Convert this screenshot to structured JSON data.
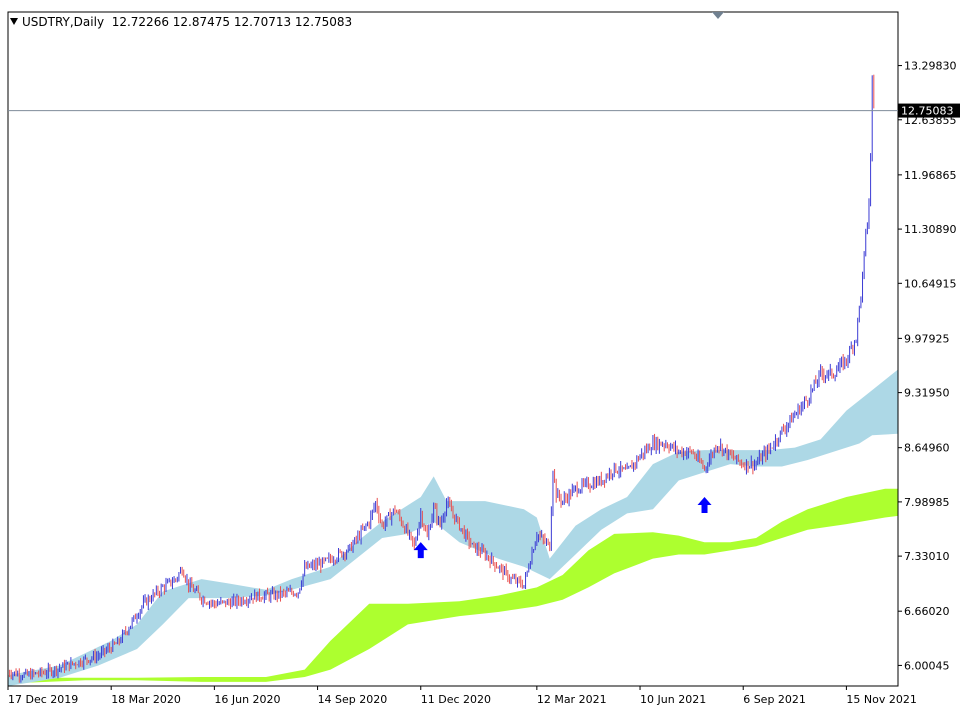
{
  "chart_data": {
    "type": "candlestick",
    "symbol": "USDTRY,Daily",
    "ohlc_label": "12.72266 12.87475 12.70713 12.75083",
    "current_price": "12.75083",
    "y_ticks": [
      "13.29830",
      "12.63855",
      "11.96865",
      "11.30890",
      "10.64915",
      "9.97925",
      "9.31950",
      "8.64960",
      "7.98985",
      "7.33010",
      "6.66020",
      "6.00045"
    ],
    "y_tick_values": [
      13.2983,
      12.63855,
      11.96865,
      11.3089,
      10.64915,
      9.97925,
      9.3195,
      8.6496,
      7.98985,
      7.3301,
      6.6602,
      6.00045
    ],
    "x_ticks": [
      "17 Dec 2019",
      "18 Mar 2020",
      "16 Jun 2020",
      "14 Sep 2020",
      "11 Dec 2020",
      "12 Mar 2021",
      "10 Jun 2021",
      "6 Sep 2021",
      "15 Nov 2021"
    ],
    "ylim": [
      5.75,
      13.95
    ],
    "price_path": [
      [
        0,
        5.92
      ],
      [
        3,
        5.88
      ],
      [
        6,
        5.92
      ],
      [
        10,
        6.02
      ],
      [
        14,
        6.12
      ],
      [
        17,
        6.27
      ],
      [
        19,
        6.5
      ],
      [
        21,
        6.75
      ],
      [
        24,
        6.95
      ],
      [
        26,
        7.05
      ],
      [
        27,
        7.18
      ],
      [
        28,
        6.98
      ],
      [
        30,
        6.82
      ],
      [
        32,
        6.75
      ],
      [
        35,
        6.77
      ],
      [
        38,
        6.84
      ],
      [
        42,
        6.86
      ],
      [
        45,
        6.9
      ],
      [
        46,
        7.18
      ],
      [
        49,
        7.25
      ],
      [
        53,
        7.42
      ],
      [
        56,
        7.75
      ],
      [
        57,
        7.98
      ],
      [
        58,
        7.7
      ],
      [
        60,
        7.9
      ],
      [
        63,
        7.45
      ],
      [
        64,
        7.85
      ],
      [
        65,
        7.55
      ],
      [
        66,
        7.92
      ],
      [
        67,
        7.7
      ],
      [
        68,
        7.98
      ],
      [
        70,
        7.7
      ],
      [
        72,
        7.45
      ],
      [
        74,
        7.35
      ],
      [
        76,
        7.2
      ],
      [
        78,
        7.05
      ],
      [
        80,
        6.98
      ],
      [
        81,
        7.3
      ],
      [
        82,
        7.6
      ],
      [
        84,
        7.45
      ],
      [
        84.5,
        8.4
      ],
      [
        85,
        8.08
      ],
      [
        86,
        8.0
      ],
      [
        88,
        8.15
      ],
      [
        90,
        8.2
      ],
      [
        92,
        8.25
      ],
      [
        94,
        8.4
      ],
      [
        96,
        8.35
      ],
      [
        98,
        8.55
      ],
      [
        100,
        8.7
      ],
      [
        102,
        8.7
      ],
      [
        104,
        8.6
      ],
      [
        106,
        8.6
      ],
      [
        108,
        8.4
      ],
      [
        110,
        8.7
      ],
      [
        112,
        8.55
      ],
      [
        114,
        8.45
      ],
      [
        116,
        8.45
      ],
      [
        117,
        8.55
      ],
      [
        118,
        8.62
      ],
      [
        120,
        8.85
      ],
      [
        122,
        9.05
      ],
      [
        124,
        9.25
      ],
      [
        126,
        9.55
      ],
      [
        128,
        9.55
      ],
      [
        130,
        9.72
      ],
      [
        131.5,
        10.0
      ],
      [
        132,
        10.35
      ],
      [
        132.5,
        10.7
      ],
      [
        133,
        11.25
      ],
      [
        133.4,
        11.42
      ],
      [
        133.8,
        12.3
      ],
      [
        134,
        13.1
      ],
      [
        134.4,
        12.75
      ]
    ],
    "ichimoku_cloud_a": {
      "name": "",
      "color": "#add8e6",
      "upper": [
        [
          0,
          5.88
        ],
        [
          8,
          6.0
        ],
        [
          16,
          6.3
        ],
        [
          20,
          6.5
        ],
        [
          24,
          6.9
        ],
        [
          30,
          7.05
        ],
        [
          34,
          7.0
        ],
        [
          40,
          6.92
        ],
        [
          44,
          7.05
        ],
        [
          50,
          7.2
        ],
        [
          54,
          7.5
        ],
        [
          58,
          7.75
        ],
        [
          64,
          8.05
        ],
        [
          66,
          8.3
        ],
        [
          68,
          8.0
        ],
        [
          74,
          8.0
        ],
        [
          80,
          7.9
        ],
        [
          82,
          7.8
        ],
        [
          84,
          7.3
        ],
        [
          88,
          7.7
        ],
        [
          92,
          7.9
        ],
        [
          96,
          8.05
        ],
        [
          100,
          8.45
        ],
        [
          104,
          8.6
        ],
        [
          108,
          8.62
        ],
        [
          112,
          8.62
        ],
        [
          118,
          8.62
        ],
        [
          122,
          8.65
        ],
        [
          126,
          8.75
        ],
        [
          130,
          9.1
        ],
        [
          134,
          9.35
        ],
        [
          138,
          9.6
        ]
      ],
      "lower": [
        [
          0,
          5.75
        ],
        [
          8,
          5.85
        ],
        [
          14,
          6.0
        ],
        [
          20,
          6.2
        ],
        [
          24,
          6.5
        ],
        [
          28,
          6.82
        ],
        [
          34,
          6.82
        ],
        [
          40,
          6.85
        ],
        [
          44,
          6.92
        ],
        [
          50,
          7.05
        ],
        [
          54,
          7.3
        ],
        [
          58,
          7.55
        ],
        [
          62,
          7.6
        ],
        [
          66,
          7.75
        ],
        [
          70,
          7.5
        ],
        [
          76,
          7.3
        ],
        [
          80,
          7.2
        ],
        [
          84,
          7.05
        ],
        [
          88,
          7.35
        ],
        [
          92,
          7.65
        ],
        [
          96,
          7.85
        ],
        [
          100,
          7.9
        ],
        [
          104,
          8.25
        ],
        [
          108,
          8.35
        ],
        [
          112,
          8.45
        ],
        [
          116,
          8.42
        ],
        [
          120,
          8.42
        ],
        [
          124,
          8.5
        ],
        [
          128,
          8.6
        ],
        [
          132,
          8.7
        ],
        [
          134,
          8.8
        ],
        [
          138,
          8.82
        ]
      ]
    },
    "ichimoku_cloud_b": {
      "name": "",
      "color": "#adff2f",
      "upper": [
        [
          0,
          5.85
        ],
        [
          12,
          5.85
        ],
        [
          20,
          5.85
        ],
        [
          30,
          5.86
        ],
        [
          40,
          5.86
        ],
        [
          46,
          5.95
        ],
        [
          50,
          6.3
        ],
        [
          56,
          6.75
        ],
        [
          62,
          6.75
        ],
        [
          70,
          6.78
        ],
        [
          76,
          6.85
        ],
        [
          82,
          6.95
        ],
        [
          86,
          7.1
        ],
        [
          90,
          7.4
        ],
        [
          94,
          7.6
        ],
        [
          100,
          7.62
        ],
        [
          104,
          7.58
        ],
        [
          108,
          7.5
        ],
        [
          112,
          7.5
        ],
        [
          116,
          7.55
        ],
        [
          120,
          7.75
        ],
        [
          124,
          7.9
        ],
        [
          130,
          8.05
        ],
        [
          136,
          8.15
        ],
        [
          138,
          8.15
        ]
      ],
      "lower": [
        [
          0,
          5.78
        ],
        [
          12,
          5.82
        ],
        [
          20,
          5.82
        ],
        [
          30,
          5.8
        ],
        [
          40,
          5.8
        ],
        [
          46,
          5.86
        ],
        [
          50,
          5.95
        ],
        [
          56,
          6.2
        ],
        [
          62,
          6.5
        ],
        [
          70,
          6.6
        ],
        [
          76,
          6.65
        ],
        [
          82,
          6.72
        ],
        [
          86,
          6.8
        ],
        [
          90,
          6.95
        ],
        [
          94,
          7.12
        ],
        [
          100,
          7.3
        ],
        [
          104,
          7.35
        ],
        [
          108,
          7.35
        ],
        [
          112,
          7.4
        ],
        [
          116,
          7.45
        ],
        [
          120,
          7.55
        ],
        [
          124,
          7.65
        ],
        [
          130,
          7.72
        ],
        [
          136,
          7.8
        ],
        [
          138,
          7.82
        ]
      ]
    },
    "bull_color": "#3a3ad4",
    "bear_color": "#e85050",
    "signal_arrows": [
      {
        "x": 64,
        "price": 7.5,
        "color": "#0000ff",
        "direction": "up"
      },
      {
        "x": 108,
        "price": 8.05,
        "color": "#0000ff",
        "direction": "up"
      }
    ],
    "x_tick_positions": [
      0,
      16,
      32,
      48,
      64,
      82,
      98,
      114,
      130
    ],
    "x_range": [
      0,
      138
    ]
  },
  "colors": {
    "background": "#ffffff",
    "axis": "#000000",
    "price_line": "#7f8c99",
    "price_label_bg": "#000000",
    "price_label_text": "#ffffff"
  }
}
